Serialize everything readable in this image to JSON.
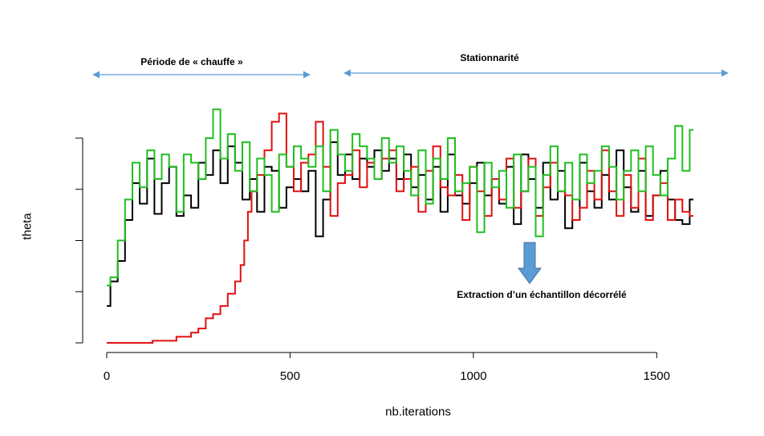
{
  "chart_data": {
    "type": "line",
    "xlabel": "nb.iterations",
    "ylabel": "theta",
    "xlim": [
      0,
      1600
    ],
    "ylim": [
      0,
      100
    ],
    "x_ticks": [
      0,
      500,
      1000,
      1500
    ],
    "x_tick_labels": [
      "0",
      "500",
      "1000",
      "1500"
    ],
    "y_ticks": [
      0,
      25,
      50,
      75,
      100
    ],
    "y_tick_labels": [
      "",
      "",
      "",
      "",
      ""
    ],
    "grid": false,
    "series": [
      {
        "color": "#000000",
        "points": [
          [
            0,
            18
          ],
          [
            20,
            30
          ],
          [
            40,
            40
          ],
          [
            60,
            60
          ],
          [
            80,
            78
          ],
          [
            100,
            68
          ],
          [
            120,
            90
          ],
          [
            140,
            63
          ],
          [
            160,
            78
          ],
          [
            180,
            86
          ],
          [
            200,
            62
          ],
          [
            220,
            72
          ],
          [
            240,
            66
          ],
          [
            260,
            88
          ],
          [
            280,
            82
          ],
          [
            300,
            94
          ],
          [
            320,
            78
          ],
          [
            340,
            96
          ],
          [
            360,
            88
          ],
          [
            380,
            70
          ],
          [
            400,
            80
          ],
          [
            420,
            64
          ],
          [
            440,
            86
          ],
          [
            460,
            84
          ],
          [
            480,
            66
          ],
          [
            500,
            76
          ],
          [
            520,
            80
          ],
          [
            540,
            74
          ],
          [
            560,
            84
          ],
          [
            580,
            52
          ],
          [
            600,
            70
          ],
          [
            620,
            98
          ],
          [
            640,
            82
          ],
          [
            660,
            92
          ],
          [
            680,
            80
          ],
          [
            700,
            90
          ],
          [
            720,
            86
          ],
          [
            740,
            94
          ],
          [
            760,
            84
          ],
          [
            780,
            90
          ],
          [
            800,
            80
          ],
          [
            820,
            92
          ],
          [
            840,
            76
          ],
          [
            860,
            82
          ],
          [
            880,
            70
          ],
          [
            900,
            86
          ],
          [
            920,
            64
          ],
          [
            940,
            92
          ],
          [
            960,
            72
          ],
          [
            980,
            68
          ],
          [
            1000,
            78
          ],
          [
            1020,
            88
          ],
          [
            1040,
            72
          ],
          [
            1060,
            80
          ],
          [
            1080,
            68
          ],
          [
            1100,
            86
          ],
          [
            1120,
            58
          ],
          [
            1140,
            92
          ],
          [
            1160,
            80
          ],
          [
            1180,
            66
          ],
          [
            1200,
            88
          ],
          [
            1220,
            70
          ],
          [
            1240,
            84
          ],
          [
            1260,
            56
          ],
          [
            1280,
            60
          ],
          [
            1300,
            88
          ],
          [
            1320,
            74
          ],
          [
            1340,
            66
          ],
          [
            1360,
            82
          ],
          [
            1380,
            70
          ],
          [
            1400,
            94
          ],
          [
            1420,
            76
          ],
          [
            1440,
            64
          ],
          [
            1460,
            84
          ],
          [
            1480,
            62
          ],
          [
            1500,
            72
          ],
          [
            1520,
            84
          ],
          [
            1540,
            70
          ],
          [
            1560,
            60
          ],
          [
            1580,
            58
          ],
          [
            1600,
            70
          ]
        ]
      },
      {
        "color": "#e01010",
        "points": [
          [
            0,
            0
          ],
          [
            50,
            0
          ],
          [
            100,
            0
          ],
          [
            150,
            1
          ],
          [
            180,
            1
          ],
          [
            200,
            3
          ],
          [
            220,
            3
          ],
          [
            240,
            5
          ],
          [
            260,
            7
          ],
          [
            280,
            12
          ],
          [
            300,
            14
          ],
          [
            320,
            18
          ],
          [
            340,
            24
          ],
          [
            360,
            30
          ],
          [
            370,
            38
          ],
          [
            380,
            50
          ],
          [
            390,
            64
          ],
          [
            400,
            74
          ],
          [
            420,
            82
          ],
          [
            440,
            94
          ],
          [
            460,
            108
          ],
          [
            480,
            112
          ],
          [
            500,
            86
          ],
          [
            520,
            74
          ],
          [
            540,
            88
          ],
          [
            560,
            92
          ],
          [
            580,
            108
          ],
          [
            600,
            86
          ],
          [
            620,
            62
          ],
          [
            640,
            78
          ],
          [
            660,
            82
          ],
          [
            680,
            94
          ],
          [
            700,
            76
          ],
          [
            720,
            88
          ],
          [
            740,
            80
          ],
          [
            760,
            90
          ],
          [
            780,
            94
          ],
          [
            800,
            74
          ],
          [
            820,
            80
          ],
          [
            840,
            86
          ],
          [
            860,
            64
          ],
          [
            880,
            84
          ],
          [
            900,
            96
          ],
          [
            920,
            76
          ],
          [
            940,
            72
          ],
          [
            960,
            82
          ],
          [
            980,
            60
          ],
          [
            1000,
            86
          ],
          [
            1020,
            74
          ],
          [
            1040,
            62
          ],
          [
            1060,
            80
          ],
          [
            1080,
            70
          ],
          [
            1100,
            90
          ],
          [
            1120,
            66
          ],
          [
            1140,
            74
          ],
          [
            1160,
            90
          ],
          [
            1180,
            62
          ],
          [
            1200,
            76
          ],
          [
            1220,
            88
          ],
          [
            1240,
            74
          ],
          [
            1260,
            72
          ],
          [
            1280,
            60
          ],
          [
            1300,
            66
          ],
          [
            1320,
            84
          ],
          [
            1340,
            70
          ],
          [
            1360,
            94
          ],
          [
            1380,
            74
          ],
          [
            1400,
            62
          ],
          [
            1420,
            82
          ],
          [
            1440,
            66
          ],
          [
            1460,
            90
          ],
          [
            1480,
            60
          ],
          [
            1500,
            72
          ],
          [
            1520,
            78
          ],
          [
            1540,
            60
          ],
          [
            1560,
            70
          ],
          [
            1580,
            64
          ],
          [
            1600,
            62
          ]
        ]
      },
      {
        "color": "#1fbf1f",
        "points": [
          [
            0,
            28
          ],
          [
            20,
            32
          ],
          [
            40,
            50
          ],
          [
            60,
            70
          ],
          [
            80,
            88
          ],
          [
            100,
            76
          ],
          [
            120,
            94
          ],
          [
            140,
            80
          ],
          [
            160,
            92
          ],
          [
            180,
            86
          ],
          [
            200,
            64
          ],
          [
            220,
            92
          ],
          [
            240,
            88
          ],
          [
            260,
            80
          ],
          [
            280,
            100
          ],
          [
            300,
            114
          ],
          [
            320,
            90
          ],
          [
            340,
            102
          ],
          [
            360,
            84
          ],
          [
            380,
            98
          ],
          [
            400,
            74
          ],
          [
            420,
            90
          ],
          [
            440,
            82
          ],
          [
            460,
            64
          ],
          [
            480,
            92
          ],
          [
            500,
            86
          ],
          [
            520,
            96
          ],
          [
            540,
            90
          ],
          [
            560,
            86
          ],
          [
            580,
            96
          ],
          [
            600,
            74
          ],
          [
            620,
            104
          ],
          [
            640,
            92
          ],
          [
            660,
            84
          ],
          [
            680,
            102
          ],
          [
            700,
            96
          ],
          [
            720,
            90
          ],
          [
            740,
            80
          ],
          [
            760,
            100
          ],
          [
            780,
            88
          ],
          [
            800,
            96
          ],
          [
            820,
            84
          ],
          [
            840,
            72
          ],
          [
            860,
            94
          ],
          [
            880,
            68
          ],
          [
            900,
            90
          ],
          [
            920,
            80
          ],
          [
            940,
            100
          ],
          [
            960,
            74
          ],
          [
            980,
            78
          ],
          [
            1000,
            86
          ],
          [
            1020,
            54
          ],
          [
            1040,
            88
          ],
          [
            1060,
            76
          ],
          [
            1080,
            84
          ],
          [
            1100,
            66
          ],
          [
            1120,
            92
          ],
          [
            1140,
            74
          ],
          [
            1160,
            86
          ],
          [
            1180,
            52
          ],
          [
            1200,
            82
          ],
          [
            1220,
            96
          ],
          [
            1240,
            74
          ],
          [
            1260,
            88
          ],
          [
            1280,
            70
          ],
          [
            1300,
            92
          ],
          [
            1320,
            78
          ],
          [
            1340,
            84
          ],
          [
            1360,
            96
          ],
          [
            1380,
            86
          ],
          [
            1400,
            70
          ],
          [
            1420,
            84
          ],
          [
            1440,
            94
          ],
          [
            1460,
            74
          ],
          [
            1480,
            96
          ],
          [
            1500,
            82
          ],
          [
            1520,
            72
          ],
          [
            1540,
            90
          ],
          [
            1560,
            106
          ],
          [
            1580,
            84
          ],
          [
            1600,
            104
          ]
        ]
      }
    ]
  },
  "annotations": {
    "warmup_label": "Période de « chauffe »",
    "stationary_label": "Stationnarité",
    "extraction_label": "Extraction d’un échantillon décorrélé"
  },
  "colors": {
    "range_arrow": "#5b9bd5",
    "down_arrow_fill": "#5b9bd5",
    "down_arrow_stroke": "#41719c"
  }
}
